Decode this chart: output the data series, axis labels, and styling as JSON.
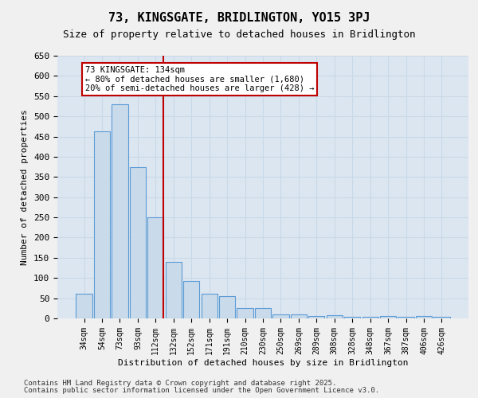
{
  "title1": "73, KINGSGATE, BRIDLINGTON, YO15 3PJ",
  "title2": "Size of property relative to detached houses in Bridlington",
  "xlabel": "Distribution of detached houses by size in Bridlington",
  "ylabel": "Number of detached properties",
  "categories": [
    "34sqm",
    "54sqm",
    "73sqm",
    "93sqm",
    "112sqm",
    "132sqm",
    "152sqm",
    "171sqm",
    "191sqm",
    "210sqm",
    "230sqm",
    "250sqm",
    "269sqm",
    "289sqm",
    "308sqm",
    "328sqm",
    "348sqm",
    "367sqm",
    "387sqm",
    "406sqm",
    "426sqm"
  ],
  "values": [
    62,
    463,
    530,
    375,
    250,
    140,
    93,
    62,
    55,
    25,
    25,
    10,
    10,
    5,
    8,
    3,
    3,
    5,
    3,
    5,
    3
  ],
  "bar_color": "#c9daea",
  "bar_edge_color": "#5b9bd5",
  "highlight_line_color": "#c00000",
  "annotation_text": "73 KINGSGATE: 134sqm\n← 80% of detached houses are smaller (1,680)\n20% of semi-detached houses are larger (428) →",
  "annotation_box_color": "#ffffff",
  "annotation_box_edge_color": "#c00000",
  "ylim": [
    0,
    650
  ],
  "yticks": [
    0,
    50,
    100,
    150,
    200,
    250,
    300,
    350,
    400,
    450,
    500,
    550,
    600,
    650
  ],
  "grid_color": "#c9d9e8",
  "background_color": "#dce6f1",
  "fig_background_color": "#f0f0f0",
  "footer_line1": "Contains HM Land Registry data © Crown copyright and database right 2025.",
  "footer_line2": "Contains public sector information licensed under the Open Government Licence v3.0."
}
